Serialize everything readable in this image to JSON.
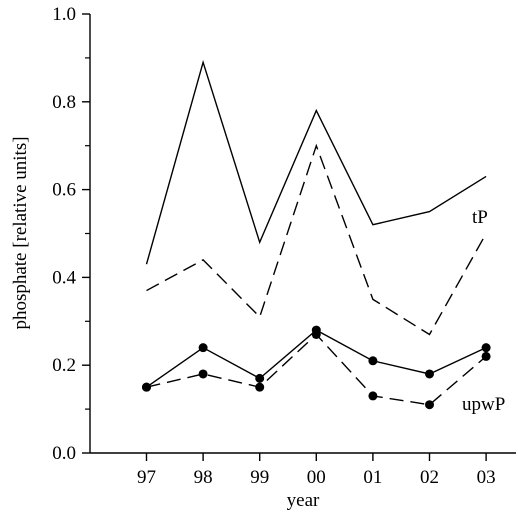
{
  "chart_data": {
    "type": "line",
    "title": "",
    "xlabel": "year",
    "ylabel": "phosphate [relative units]",
    "categories": [
      "97",
      "98",
      "99",
      "00",
      "01",
      "02",
      "03"
    ],
    "ylim": [
      0.0,
      1.0
    ],
    "yticks": [
      "0.0",
      "0.2",
      "0.4",
      "0.6",
      "0.8",
      "1.0"
    ],
    "grid": false,
    "series": [
      {
        "name": "",
        "style": "solid",
        "markers": false,
        "values": [
          0.43,
          0.89,
          0.48,
          0.78,
          0.52,
          0.55,
          0.63
        ]
      },
      {
        "name": "",
        "style": "dashed",
        "markers": false,
        "values": [
          0.37,
          0.44,
          0.31,
          0.7,
          0.35,
          0.27,
          0.5
        ]
      },
      {
        "name": "",
        "style": "solid",
        "markers": true,
        "values": [
          0.15,
          0.24,
          0.17,
          0.28,
          0.21,
          0.18,
          0.24
        ]
      },
      {
        "name": "",
        "style": "dashed",
        "markers": true,
        "values": [
          0.15,
          0.18,
          0.15,
          0.27,
          0.13,
          0.11,
          0.22
        ]
      }
    ],
    "annotations": [
      {
        "text": "tP",
        "near_series": 0
      },
      {
        "text": "upwP",
        "near_series": 2
      }
    ],
    "color": "#000000"
  }
}
